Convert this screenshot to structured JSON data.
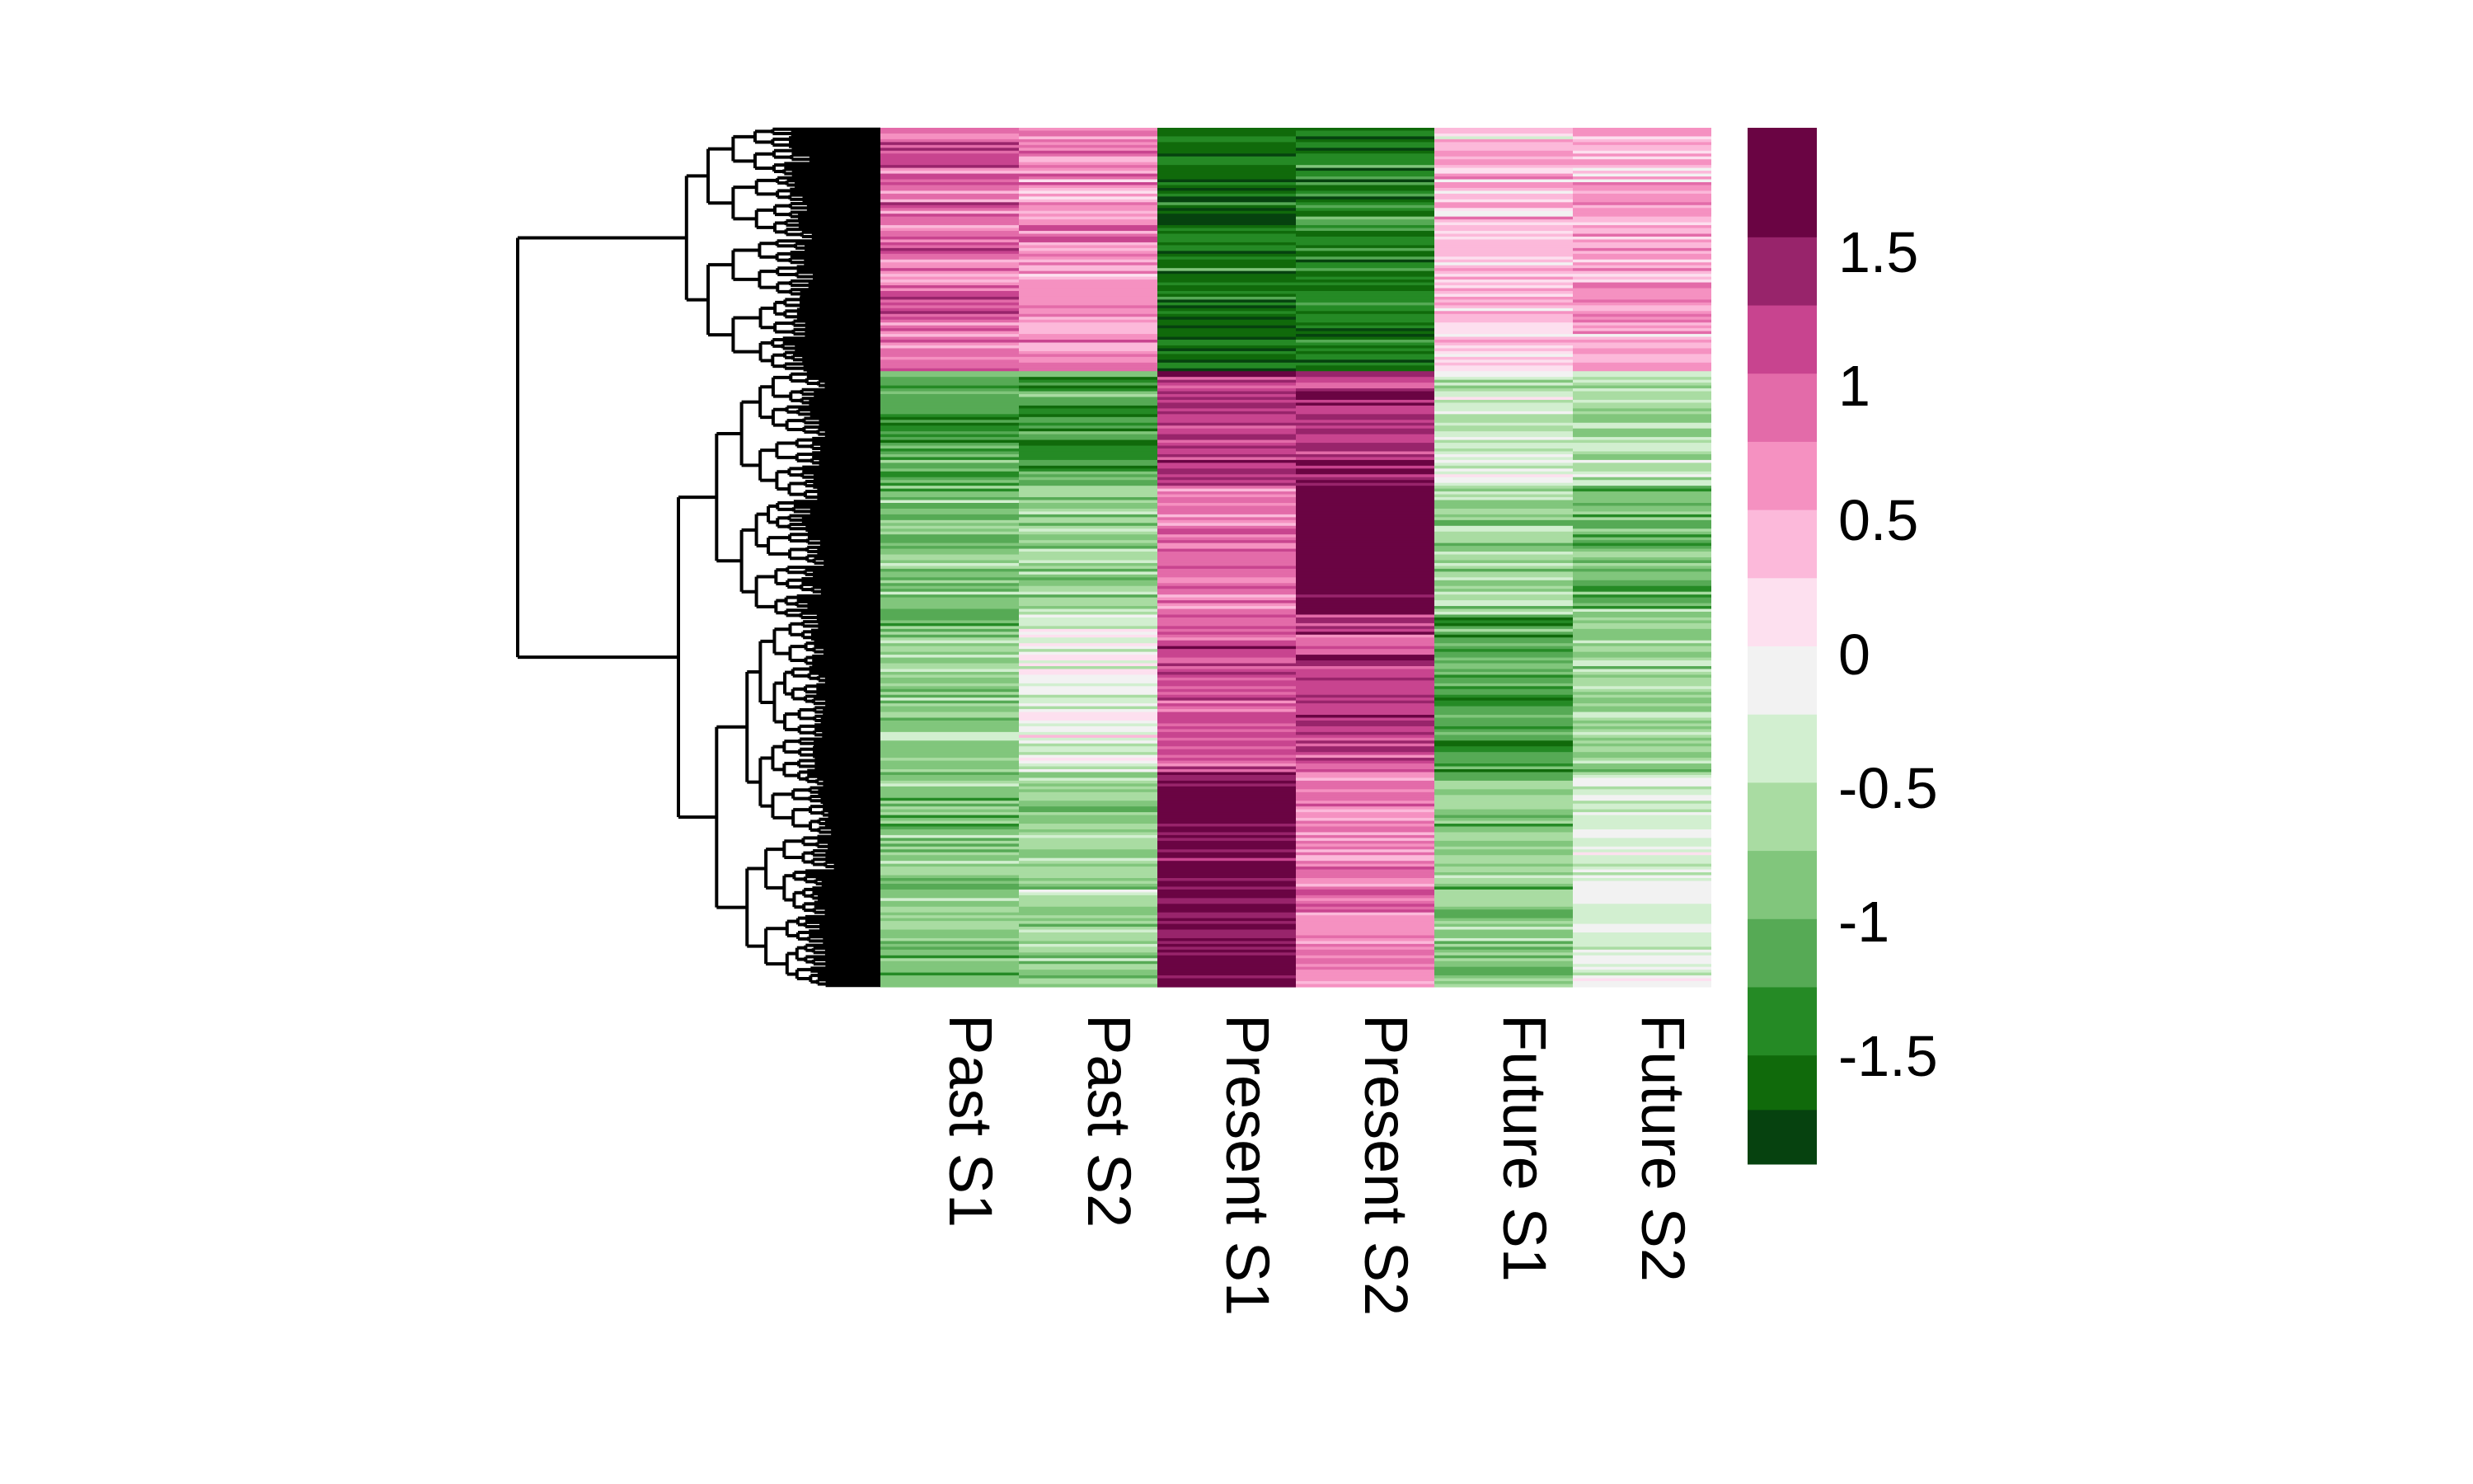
{
  "chart_data": {
    "type": "heatmap",
    "title": "",
    "xlabel": "",
    "ylabel": "",
    "columns": [
      "Past S1",
      "Past S2",
      "Present S1",
      "Present S2",
      "Future S1",
      "Future S2"
    ],
    "row_count": 300,
    "row_dendrogram": true,
    "column_dendrogram": false,
    "color_scale": {
      "type": "diverging",
      "min": -1.9,
      "max": 1.9,
      "ticks": [
        1.5,
        1,
        0.5,
        0,
        -0.5,
        -1,
        -1.5
      ],
      "tick_labels": [
        "1.5",
        "1",
        "0.5",
        "0",
        "-0.5",
        "-1",
        "-1.5"
      ],
      "bins": [
        {
          "from": -1.9,
          "to": -1.7,
          "color": "#06420f"
        },
        {
          "from": -1.7,
          "to": -1.5,
          "color": "#106a0b"
        },
        {
          "from": -1.5,
          "to": -1.25,
          "color": "#258a25"
        },
        {
          "from": -1.25,
          "to": -1.0,
          "color": "#56aa55"
        },
        {
          "from": -1.0,
          "to": -0.75,
          "color": "#81c67c"
        },
        {
          "from": -0.75,
          "to": -0.5,
          "color": "#a9dca2"
        },
        {
          "from": -0.5,
          "to": -0.25,
          "color": "#d2efd0"
        },
        {
          "from": -0.25,
          "to": 0.0,
          "color": "#f2f2f2"
        },
        {
          "from": 0.0,
          "to": 0.25,
          "color": "#fde0ef"
        },
        {
          "from": 0.25,
          "to": 0.5,
          "color": "#fcb9da"
        },
        {
          "from": 0.5,
          "to": 0.75,
          "color": "#f591c1"
        },
        {
          "from": 0.75,
          "to": 1.0,
          "color": "#e36ba9"
        },
        {
          "from": 1.0,
          "to": 1.25,
          "color": "#c8448f"
        },
        {
          "from": 1.25,
          "to": 1.5,
          "color": "#98246b"
        },
        {
          "from": 1.5,
          "to": 1.9,
          "color": "#6a0443"
        }
      ]
    },
    "clusters": [
      {
        "rows": [
          0,
          85
        ],
        "means": [
          0.85,
          0.6,
          -1.6,
          -1.45,
          0.35,
          0.45
        ]
      },
      {
        "rows": [
          85,
          125
        ],
        "means": [
          -1.15,
          -1.25,
          1.25,
          1.3,
          -0.45,
          -0.55
        ]
      },
      {
        "rows": [
          125,
          170
        ],
        "means": [
          -0.9,
          -0.75,
          0.8,
          1.85,
          -0.7,
          -1.0
        ]
      },
      {
        "rows": [
          170,
          225
        ],
        "means": [
          -0.8,
          -0.2,
          1.05,
          1.15,
          -1.2,
          -0.7
        ]
      },
      {
        "rows": [
          225,
          300
        ],
        "means": [
          -0.85,
          -0.7,
          1.65,
          0.75,
          -0.75,
          -0.3
        ]
      }
    ]
  }
}
